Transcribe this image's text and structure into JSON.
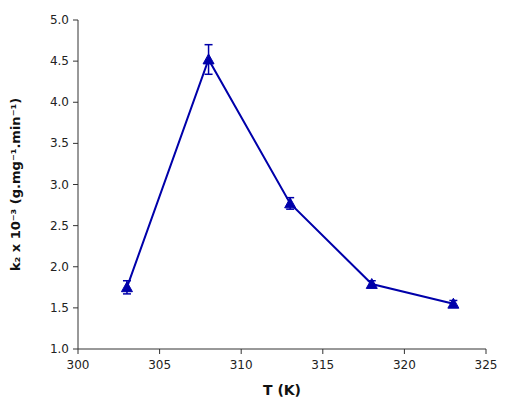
{
  "chart_data": {
    "type": "line",
    "x": [
      303,
      308,
      313,
      318,
      323
    ],
    "values": [
      1.75,
      4.52,
      2.77,
      1.79,
      1.55
    ],
    "errors": [
      0.08,
      0.18,
      0.07,
      0.04,
      0.04
    ],
    "x_label": "T (K)",
    "y_label": "k₂ x 10⁻³ (g.mg⁻¹.min⁻¹)",
    "color": "#0000AA",
    "marker": "triangle",
    "line_style": "solid",
    "xlim": [
      300,
      325
    ],
    "ylim": [
      1.0,
      5.0
    ],
    "xticks": [
      300,
      305,
      310,
      315,
      320,
      325
    ],
    "yticks": [
      {
        "value": 1.0,
        "label": "1.0"
      },
      {
        "value": 1.5,
        "label": "1.5"
      },
      {
        "value": 2.0,
        "label": "2.0"
      },
      {
        "value": 2.5,
        "label": "2.5"
      },
      {
        "value": 3.0,
        "label": "3.0"
      },
      {
        "value": 3.5,
        "label": "3.5"
      },
      {
        "value": 4.0,
        "label": "4.0"
      },
      {
        "value": 4.5,
        "label": "4.5"
      },
      {
        "value": 5.0,
        "label": "5.0"
      }
    ],
    "grid": false
  }
}
